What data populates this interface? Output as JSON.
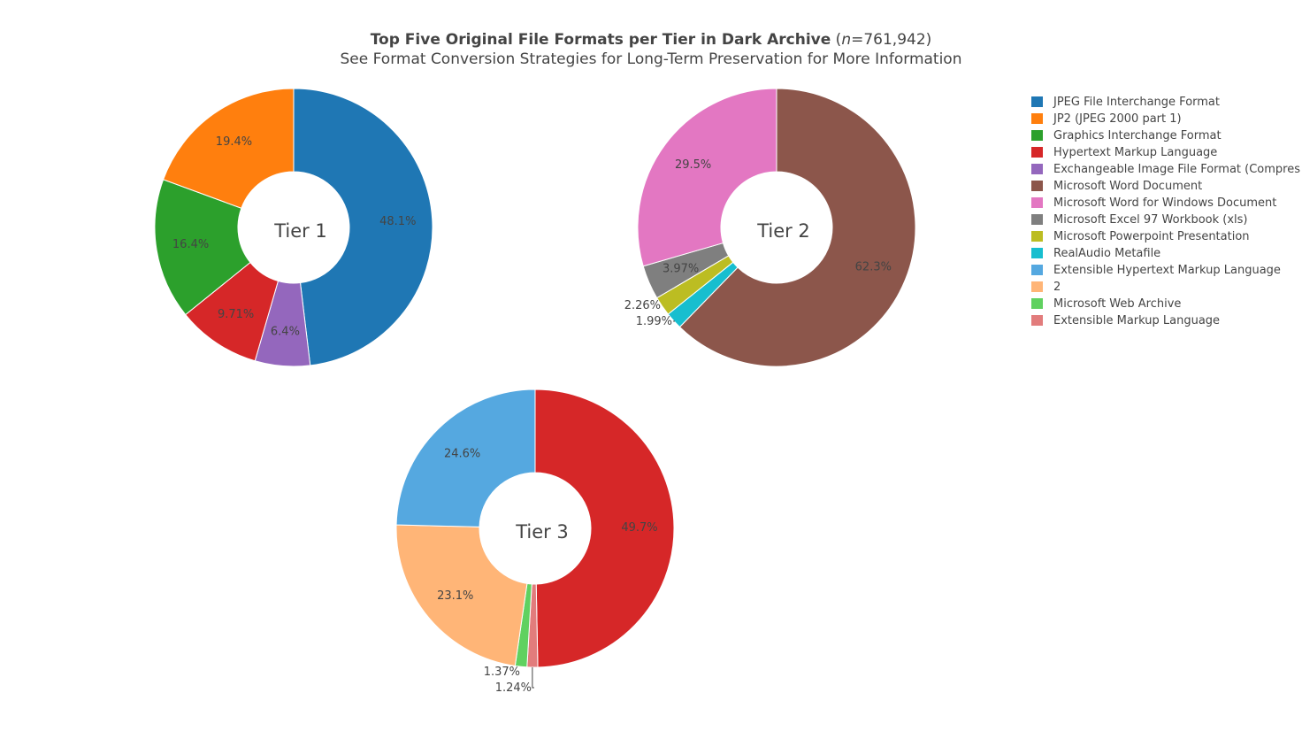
{
  "chart_data": {
    "type": "pie",
    "title": {
      "bold": "Top Five Original File Formats per Tier in Dark Archive",
      "open_paren": " (",
      "n_italic": "n",
      "n_value": "=761,942)"
    },
    "subtitle": "See Format Conversion Strategies for Long-Term Preservation for More Information",
    "legend": [
      {
        "label": "JPEG File Interchange Format",
        "color": "#1f77b4"
      },
      {
        "label": "JP2 (JPEG 2000 part 1)",
        "color": "#ff7f0e"
      },
      {
        "label": "Graphics Interchange Format",
        "color": "#2ca02c"
      },
      {
        "label": "Hypertext Markup Language",
        "color": "#d62728"
      },
      {
        "label": "Exchangeable Image File Format (Compres",
        "color": "#9467bd"
      },
      {
        "label": "Microsoft Word Document",
        "color": "#8c564b"
      },
      {
        "label": "Microsoft Word for Windows Document",
        "color": "#e377c2"
      },
      {
        "label": "Microsoft Excel 97 Workbook (xls)",
        "color": "#7f7f7f"
      },
      {
        "label": "Microsoft Powerpoint Presentation",
        "color": "#bcbd22"
      },
      {
        "label": "RealAudio Metafile",
        "color": "#17becf"
      },
      {
        "label": "Extensible Hypertext Markup Language",
        "color": "#55a8e0"
      },
      {
        "label": "2",
        "color": "#ffb577"
      },
      {
        "label": "Microsoft Web Archive",
        "color": "#60d160"
      },
      {
        "label": "Extensible Markup Language",
        "color": "#e27c7c"
      }
    ],
    "pies": [
      {
        "name": "Tier 1",
        "slices": [
          {
            "label": "JPEG File Interchange Format",
            "value": 48.1,
            "text": "48.1%"
          },
          {
            "label": "Exchangeable Image File Format (Compres",
            "value": 6.4,
            "text": "6.4%"
          },
          {
            "label": "Hypertext Markup Language",
            "value": 9.71,
            "text": "9.71%"
          },
          {
            "label": "Graphics Interchange Format",
            "value": 16.4,
            "text": "16.4%"
          },
          {
            "label": "JP2 (JPEG 2000 part 1)",
            "value": 19.4,
            "text": "19.4%"
          }
        ]
      },
      {
        "name": "Tier 2",
        "slices": [
          {
            "label": "Microsoft Word Document",
            "value": 62.3,
            "text": "62.3%"
          },
          {
            "label": "RealAudio Metafile",
            "value": 1.99,
            "text": "1.99%"
          },
          {
            "label": "Microsoft Powerpoint Presentation",
            "value": 2.26,
            "text": "2.26%"
          },
          {
            "label": "Microsoft Excel 97 Workbook (xls)",
            "value": 3.97,
            "text": "3.97%"
          },
          {
            "label": "Microsoft Word for Windows Document",
            "value": 29.5,
            "text": "29.5%"
          }
        ]
      },
      {
        "name": "Tier 3",
        "slices": [
          {
            "label": "Hypertext Markup Language",
            "value": 49.7,
            "text": "49.7%"
          },
          {
            "label": "Extensible Markup Language",
            "value": 1.24,
            "text": "1.24%"
          },
          {
            "label": "Microsoft Web Archive",
            "value": 1.37,
            "text": "1.37%"
          },
          {
            "label": "2",
            "value": 23.1,
            "text": "23.1%"
          },
          {
            "label": "Extensible Hypertext Markup Language",
            "value": 24.6,
            "text": "24.6%"
          }
        ]
      }
    ]
  }
}
